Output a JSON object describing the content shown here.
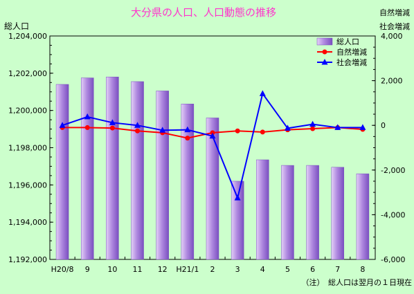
{
  "chart_data": {
    "type": "bar",
    "title": "大分県の人口、人口動態の推移",
    "categories": [
      "H20/8",
      "9",
      "10",
      "11",
      "12",
      "H21/1",
      "2",
      "3",
      "4",
      "5",
      "6",
      "7",
      "8"
    ],
    "left_axis": {
      "label": "総人口",
      "min": 1192000,
      "max": 1204000,
      "ticks": [
        "1,192,000",
        "1,194,000",
        "1,196,000",
        "1,198,000",
        "1,200,000",
        "1,202,000",
        "1,204,000"
      ]
    },
    "right_axis": {
      "label_top": "自然増減",
      "label_bottom": "社会増減",
      "min": -6000,
      "max": 4000,
      "ticks": [
        "-6,000",
        "-4,000",
        "-2,000",
        "0",
        "2,000",
        "4,000"
      ]
    },
    "series": [
      {
        "name": "総人口",
        "type": "bar",
        "axis": "left",
        "color": "#9966cc",
        "values": [
          1201400,
          1201750,
          1201800,
          1201550,
          1201050,
          1200350,
          1199600,
          1196200,
          1197350,
          1197050,
          1197050,
          1196950,
          1196600
        ]
      },
      {
        "name": "自然増減",
        "type": "line",
        "axis": "right",
        "color": "#ff0000",
        "marker": "circle",
        "values": [
          -100,
          -100,
          -120,
          -250,
          -330,
          -570,
          -330,
          -250,
          -300,
          -200,
          -150,
          -100,
          -180
        ]
      },
      {
        "name": "社会増減",
        "type": "line",
        "axis": "right",
        "color": "#0000ff",
        "marker": "triangle",
        "values": [
          0,
          380,
          120,
          0,
          -220,
          -200,
          -480,
          -3250,
          1420,
          -130,
          50,
          -100,
          -100
        ]
      }
    ],
    "legend": [
      "総人口",
      "自然増減",
      "社会増減"
    ],
    "legend_position": "top-right",
    "note": "（注）　総人口は翌月の１日現在"
  }
}
